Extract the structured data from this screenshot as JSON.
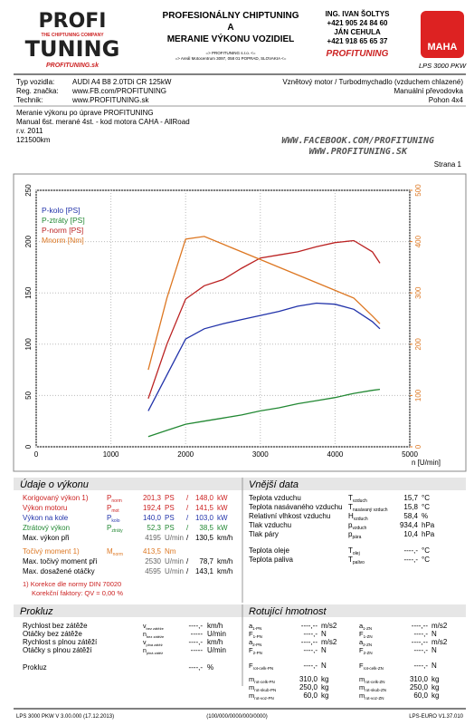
{
  "header": {
    "logo_top": "PROFI",
    "logo_bottom": "TUNING",
    "logo_tag": "THE CHIPTUNING COMPANY",
    "logo_web": "PROFITUNING.sk",
    "title1": "PROFESIONÁLNY CHIPTUNING",
    "title2": "A",
    "title3": "MERANIE VÝKONU VOZIDIEL",
    "addr1": "=> PROFITUNING s.r.o. <=",
    "addr2": "=> Areál Motocentrum 3097, 058 01 POPRAD, SLOVAKIA <=",
    "contact1": "ING. IVAN ŠOLTYS",
    "phone1": "+421 905 24 84 60",
    "contact2": "JÁN CEHULA",
    "phone2": "+421 918 65 65 37",
    "brand": "PROFITUNING",
    "maha": "MAHA",
    "model": "LPS 3000 PKW"
  },
  "vehicle": {
    "rows": [
      [
        "Typ vozidla:",
        "AUDI A4 B8 2.0TDi CR 125kW"
      ],
      [
        "Reg. značka:",
        "www.FB.com/PROFITUNING"
      ],
      [
        "Technik:",
        "www.PROFITUNING.sk"
      ]
    ],
    "right": [
      "Vznětový motor / Turbodmychadlo (vzduchem chlazené)",
      "Manuální převodovka",
      "Pohon 4x4"
    ]
  },
  "notes": [
    "Meranie výkonu po úprave PROFITUNING",
    "Manual 6st. merané 4st. - kod motora CAHA - AllRoad",
    "r.v. 2011",
    "121500km"
  ],
  "web": [
    "WWW.FACEBOOK.COM/PROFITUNING",
    "WWW.PROFITUNING.SK"
  ],
  "page": "Strana 1",
  "chart_data": {
    "type": "line",
    "x_label": "n [U/min]",
    "x": [
      1500,
      1750,
      2000,
      2250,
      2500,
      2750,
      3000,
      3250,
      3500,
      3750,
      4000,
      4250,
      4500,
      4600
    ],
    "series": [
      {
        "name": "P-kolo [PS]",
        "color": "#2233aa",
        "values": [
          35,
          70,
          105,
          115,
          120,
          124,
          128,
          132,
          137,
          140,
          139,
          134,
          122,
          115
        ]
      },
      {
        "name": "P-ztráty [PS]",
        "color": "#228833",
        "values": [
          10,
          16,
          22,
          25,
          28,
          31,
          35,
          38,
          42,
          45,
          48,
          52,
          55,
          56
        ]
      },
      {
        "name": "P-norm [PS]",
        "color": "#bb2222",
        "values": [
          47,
          100,
          144,
          157,
          163,
          174,
          184,
          187,
          190,
          195,
          199,
          201,
          190,
          179
        ]
      },
      {
        "name": "Mnorm [Nm]",
        "color": "#dd7722",
        "axis": "y2",
        "values": [
          150,
          290,
          405,
          410,
          395,
          380,
          365,
          350,
          335,
          320,
          305,
          290,
          255,
          240
        ]
      }
    ],
    "xlim": [
      0,
      5000
    ],
    "xticks": [
      0,
      1000,
      2000,
      3000,
      4000,
      5000
    ],
    "ylim": [
      0,
      250
    ],
    "yticks": [
      0,
      50,
      100,
      150,
      200,
      250
    ],
    "y2lim": [
      0,
      500
    ],
    "y2ticks": [
      0,
      100,
      200,
      300,
      400,
      500
    ],
    "y2color": "#dd7722",
    "grid": true,
    "legend": "upper left"
  },
  "performance": {
    "title": "Údaje o výkonu",
    "separator": "/",
    "rows": [
      {
        "label": "Korigovaný výkon 1)",
        "sym": "P",
        "sub": "norm",
        "v1": "201,3",
        "u1": "PS",
        "v2": "148,0",
        "u2": "kW",
        "color": "#cc2222"
      },
      {
        "label": "Výkon motoru",
        "sym": "P",
        "sub": "mot",
        "v1": "192,4",
        "u1": "PS",
        "v2": "141,5",
        "u2": "kW",
        "color": "#cc2222"
      },
      {
        "label": "Výkon na kole",
        "sym": "P",
        "sub": "kolo",
        "v1": "140,0",
        "u1": "PS",
        "v2": "103,0",
        "u2": "kW",
        "color": "#2233aa"
      },
      {
        "label": "Ztrátový výkon",
        "sym": "P",
        "sub": "ztráty",
        "v1": "52,3",
        "u1": "PS",
        "v2": "38,5",
        "u2": "kW",
        "color": "#228833"
      },
      {
        "label": "Max. výkon při",
        "v1": "4195",
        "u1": "U/min",
        "v2": "130,5",
        "u2": "km/h",
        "color": "#000000"
      },
      {
        "label": "Točivý moment 1)",
        "sym": "M",
        "sub": "norm",
        "v1": "413,5",
        "u1": "Nm",
        "color": "#dd7722"
      },
      {
        "label": "Max. točivý moment při",
        "v1": "2530",
        "u1": "U/min",
        "v2": "78,7",
        "u2": "km/h",
        "color": "#000000"
      },
      {
        "label": "Max. dosažené otáčky",
        "v1": "4595",
        "u1": "U/min",
        "v2": "143,1",
        "u2": "km/h",
        "color": "#000000"
      }
    ],
    "note1": "1) Korekce dle normy DIN 70020",
    "note2": "Korekční faktory: QV = 0,00 %"
  },
  "ambient": {
    "title": "Vnější data",
    "rows": [
      {
        "label": "Teplota vzduchu",
        "sym": "T",
        "sub": "vzduch",
        "v": "15,7",
        "u": "°C"
      },
      {
        "label": "Teplota nasávaného vzduchu",
        "sym": "T",
        "sub": "nasávaný vzduch",
        "v": "15,8",
        "u": "°C"
      },
      {
        "label": "Relativní vlhkost vzduchu",
        "sym": "H",
        "sub": "vzduch",
        "v": "58,4",
        "u": "%"
      },
      {
        "label": "Tlak vzduchu",
        "sym": "p",
        "sub": "vzduch",
        "v": "934,4",
        "u": "hPa"
      },
      {
        "label": "Tlak páry",
        "sym": "p",
        "sub": "pára",
        "v": "10,4",
        "u": "hPa"
      },
      {
        "label": "Teplota oleje",
        "sym": "T",
        "sub": "olej",
        "v": "----,-",
        "u": "°C"
      },
      {
        "label": "Teplota paliva",
        "sym": "T",
        "sub": "palivo",
        "v": "----,-",
        "u": "°C"
      }
    ]
  },
  "slip": {
    "title": "Prokluz",
    "rows": [
      {
        "label": "Rychlost bez zátěže",
        "sym": "v",
        "sub": "bez zátěže",
        "v": "----,-",
        "u": "km/h"
      },
      {
        "label": "Otáčky bez zátěže",
        "sym": "n",
        "sub": "bez zátěže",
        "v": "-----",
        "u": "U/min"
      },
      {
        "label": "Rychlost s plnou zátěží",
        "sym": "v",
        "sub": "plná zátěž",
        "v": "----,-",
        "u": "km/h"
      },
      {
        "label": "Otáčky s plnou zátěží",
        "sym": "n",
        "sub": "plná zátěž",
        "v": "-----",
        "u": "U/min"
      },
      {
        "label": "Prokluz",
        "v": "----,-",
        "u": "%"
      }
    ]
  },
  "rotating": {
    "title": "Rotující hmotnost",
    "left": [
      {
        "sym": "a",
        "sub": "1-PN",
        "v": "----,--",
        "u": "m/s2"
      },
      {
        "sym": "F",
        "sub": "1-PN",
        "v": "----,-",
        "u": "N"
      },
      {
        "sym": "a",
        "sub": "2-PN",
        "v": "----,--",
        "u": "m/s2"
      },
      {
        "sym": "F",
        "sub": "2-PN",
        "v": "----,-",
        "u": "N"
      },
      {
        "sym": "F",
        "sub": "rot-celk-PN",
        "v": "----,-",
        "u": "N"
      },
      {
        "sym": "m",
        "sub": "rot-celk-PN",
        "v": "310,0",
        "u": "kg"
      },
      {
        "sym": "m",
        "sub": "rot-skub-PN",
        "v": "250,0",
        "u": "kg"
      },
      {
        "sym": "m",
        "sub": "rot-voz-PN",
        "v": "60,0",
        "u": "kg"
      }
    ],
    "right": [
      {
        "sym": "a",
        "sub": "1-ZN",
        "v": "----,--",
        "u": "m/s2"
      },
      {
        "sym": "F",
        "sub": "1-ZN",
        "v": "----,-",
        "u": "N"
      },
      {
        "sym": "a",
        "sub": "2-ZN",
        "v": "----,--",
        "u": "m/s2"
      },
      {
        "sym": "F",
        "sub": "2-ZN",
        "v": "----,-",
        "u": "N"
      },
      {
        "sym": "F",
        "sub": "rot-celk-ZN",
        "v": "----,-",
        "u": "N"
      },
      {
        "sym": "m",
        "sub": "rot-celk-ZN",
        "v": "310,0",
        "u": "kg"
      },
      {
        "sym": "m",
        "sub": "rot-skub-ZN",
        "v": "250,0",
        "u": "kg"
      },
      {
        "sym": "m",
        "sub": "rot-voz-ZN",
        "v": "60,0",
        "u": "kg"
      }
    ]
  },
  "footer": [
    "LPS 3000 PKW V 3.00.000 (17.12.2013)",
    "(100/000/0000/000/0000)",
    "LPS-EURO V1.37.010"
  ]
}
